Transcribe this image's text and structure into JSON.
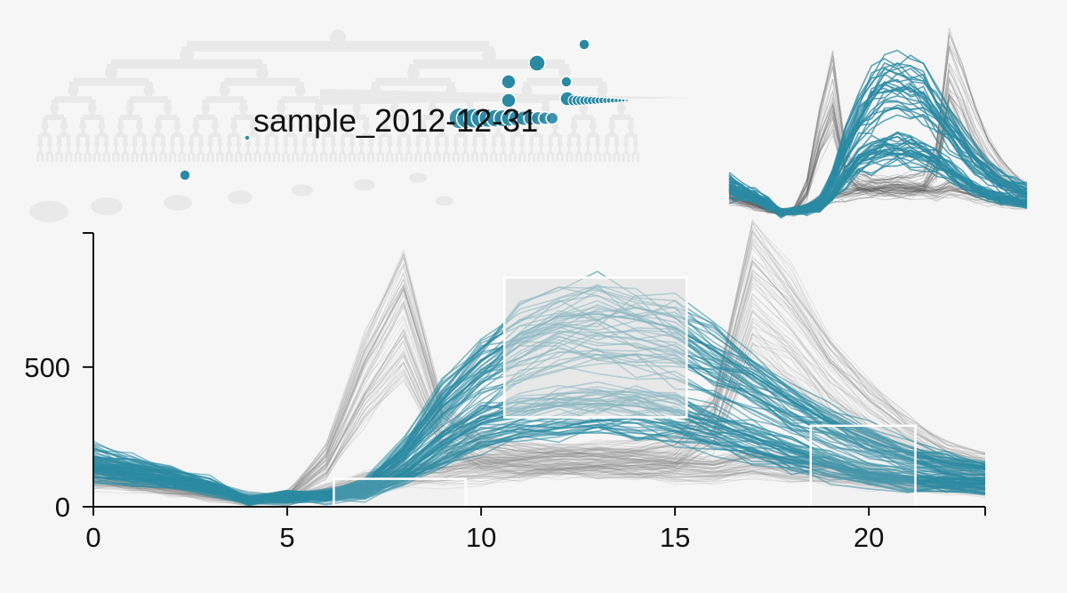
{
  "sample_label": "sample_2012-12-31",
  "colors": {
    "background": "#f6f6f6",
    "highlight": "#2b8aa3",
    "context_lines": "#8a8a8a",
    "tree_faint": "#e9e9e9",
    "brush_fill": "#dcdcdc",
    "brush_stroke": "#ffffff"
  },
  "chart_data": {
    "type": "line",
    "description_kind": "parallel time-series overview with highlighted cluster and brushed query boxes",
    "x_label": "",
    "y_label": "",
    "xlim": [
      0,
      23
    ],
    "ylim": [
      0,
      980
    ],
    "x_ticks": [
      0,
      5,
      10,
      15,
      20
    ],
    "y_ticks": [
      0,
      500
    ],
    "x_tick_labels": [
      "0",
      "5",
      "10",
      "15",
      "20"
    ],
    "y_tick_labels": [
      "0",
      "500"
    ],
    "grid": false,
    "series": [
      {
        "group": "context",
        "profile": "morning-peak",
        "x": [
          0,
          1,
          2,
          3,
          4,
          5,
          6,
          7,
          8,
          9,
          10,
          11,
          12,
          13,
          14,
          15,
          16,
          17,
          18,
          19,
          20,
          21,
          22,
          23
        ],
        "y": [
          150,
          120,
          90,
          60,
          30,
          40,
          180,
          520,
          780,
          320,
          220,
          200,
          190,
          190,
          200,
          220,
          350,
          880,
          720,
          520,
          380,
          280,
          200,
          160
        ]
      },
      {
        "group": "context",
        "profile": "flat-low",
        "x": [
          0,
          1,
          2,
          3,
          4,
          5,
          6,
          7,
          8,
          9,
          10,
          11,
          12,
          13,
          14,
          15,
          16,
          17,
          18,
          19,
          20,
          21,
          22,
          23
        ],
        "y": [
          120,
          100,
          80,
          50,
          25,
          30,
          60,
          100,
          130,
          140,
          160,
          170,
          180,
          180,
          170,
          160,
          150,
          180,
          160,
          140,
          120,
          100,
          90,
          80
        ]
      },
      {
        "group": "highlight",
        "profile": "midday-plateau",
        "x": [
          0,
          1,
          2,
          3,
          4,
          5,
          6,
          7,
          8,
          9,
          10,
          11,
          12,
          13,
          14,
          15,
          16,
          17,
          18,
          19,
          20,
          21,
          22,
          23
        ],
        "y": [
          180,
          150,
          120,
          80,
          30,
          40,
          50,
          80,
          200,
          380,
          520,
          620,
          680,
          690,
          670,
          640,
          560,
          470,
          380,
          300,
          240,
          190,
          160,
          140
        ]
      },
      {
        "group": "highlight",
        "profile": "midday-low",
        "x": [
          0,
          1,
          2,
          3,
          4,
          5,
          6,
          7,
          8,
          9,
          10,
          11,
          12,
          13,
          14,
          15,
          16,
          17,
          18,
          19,
          20,
          21,
          22,
          23
        ],
        "y": [
          140,
          120,
          100,
          70,
          25,
          35,
          40,
          50,
          120,
          220,
          300,
          340,
          360,
          370,
          360,
          340,
          300,
          250,
          200,
          160,
          120,
          100,
          90,
          80
        ]
      }
    ],
    "query_boxes": [
      {
        "x0": 6.2,
        "x1": 9.6,
        "y0": 0,
        "y1": 100
      },
      {
        "x0": 10.6,
        "x1": 15.3,
        "y0": 320,
        "y1": 820
      },
      {
        "x0": 18.5,
        "x1": 21.2,
        "y0": 0,
        "y1": 290
      }
    ]
  }
}
